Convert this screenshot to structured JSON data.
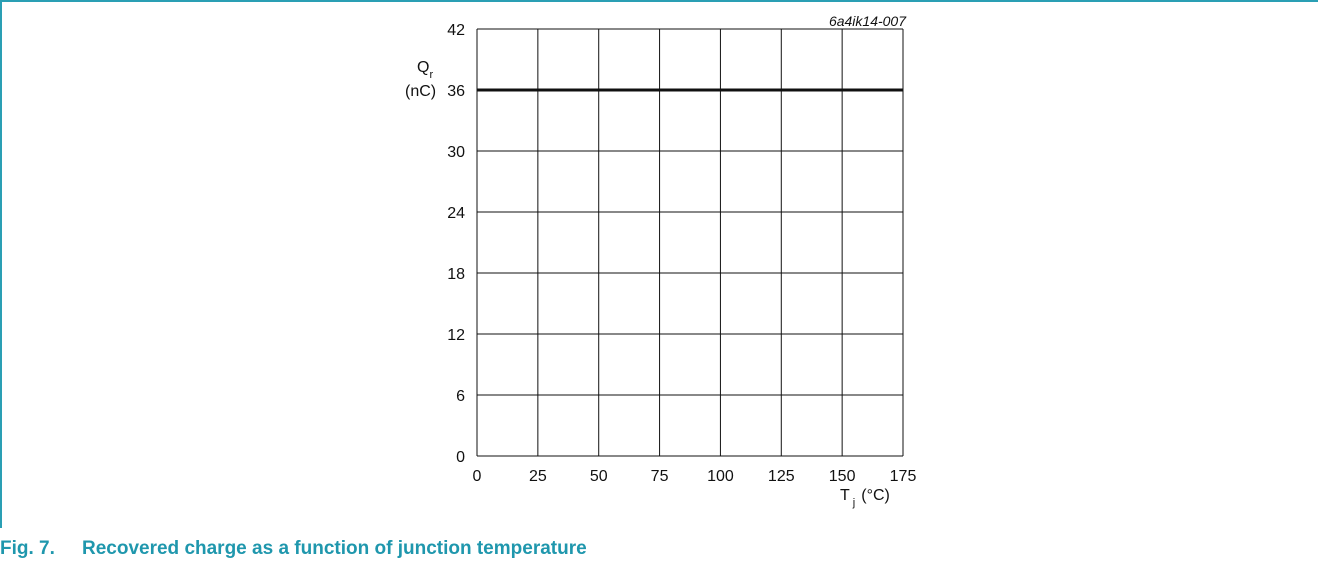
{
  "figure": {
    "id": "6a4ik14-007",
    "caption_number": "Fig. 7.",
    "caption_text": "Recovered charge as a function of junction temperature",
    "accent_color": "#1f97ad"
  },
  "chart_data": {
    "type": "line",
    "title": "",
    "ylabel": "Qr (nC)",
    "ylabel_main": "Q",
    "ylabel_sub": "r",
    "ylabel_unit": "(nC)",
    "xlabel": "Tj (°C)",
    "xlabel_main": "T",
    "xlabel_sub": "j",
    "xlabel_unit": "(°C)",
    "xlim": [
      0,
      175
    ],
    "ylim": [
      0,
      42
    ],
    "xticks": [
      0,
      25,
      50,
      75,
      100,
      125,
      150,
      175
    ],
    "yticks": [
      0,
      6,
      12,
      18,
      24,
      30,
      36,
      42
    ],
    "grid": true,
    "series": [
      {
        "x": [
          0,
          175
        ],
        "y": [
          36,
          36
        ]
      }
    ]
  }
}
